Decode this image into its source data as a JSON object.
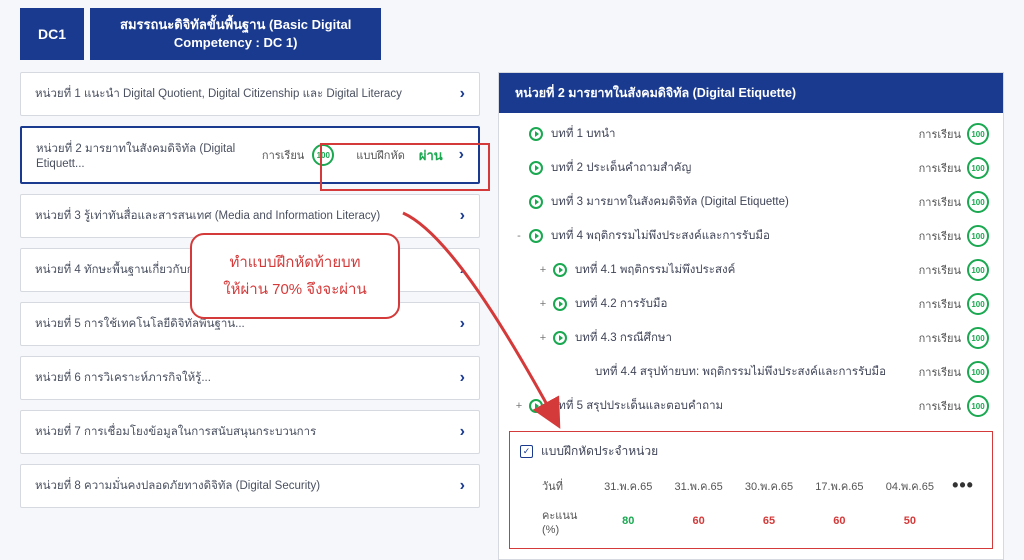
{
  "colors": {
    "brand": "#1a3a8f",
    "accent_red": "#d43a3a",
    "accent_green": "#1aa851",
    "bg": "#f5f7fa",
    "border": "#d6d9e0",
    "text": "#404558"
  },
  "header": {
    "badge": "DC1",
    "title_line1": "สมรรถนะดิจิทัลขั้นพื้นฐาน (Basic Digital",
    "title_line2": "Competency : DC 1)"
  },
  "units": [
    {
      "title": "หน่วยที่ 1 แนะนำ Digital Quotient, Digital Citizenship และ Digital Literacy"
    },
    {
      "title": "หน่วยที่ 2 มารยาทในสังคมดิจิทัล (Digital Etiquett...",
      "selected": true,
      "status_label": "การเรียน",
      "score": "100",
      "quiz_label": "แบบฝึกหัด",
      "pass_label": "ผ่าน"
    },
    {
      "title": "หน่วยที่ 3 รู้เท่าทันสื่อและสารสนเทศ (Media and Information Literacy)"
    },
    {
      "title": "หน่วยที่ 4 ทักษะพื้นฐานเกี่ยวกับการใช้งานคอมพิวเตอร์..."
    },
    {
      "title": "หน่วยที่ 5 การใช้เทคโนโลยีดิจิทัลพื้นฐาน..."
    },
    {
      "title": "หน่วยที่ 6 การวิเคราะห์ภารกิจให้รู้..."
    },
    {
      "title": "หน่วยที่ 7 การเชื่อมโยงข้อมูลในการสนับสนุนกระบวนการ"
    },
    {
      "title": "หน่วยที่ 8 ความมั่นคงปลอดภัยทางดิจิทัล (Digital Security)"
    }
  ],
  "callout": {
    "line1": "ทำแบบฝึกหัดท้ายบท",
    "line2": "ให้ผ่าน 70% จึงจะผ่าน"
  },
  "panel": {
    "title": "หน่วยที่ 2 มารยาทในสังคมดิจิทัล (Digital Etiquette)",
    "status_label": "การเรียน",
    "lessons": [
      {
        "tree": "",
        "indent": 0,
        "title": "บทที่ 1 บทนำ",
        "score": "100"
      },
      {
        "tree": "",
        "indent": 0,
        "title": "บทที่ 2 ประเด็นคำถามสำคัญ",
        "score": "100"
      },
      {
        "tree": "",
        "indent": 0,
        "title": "บทที่ 3 มารยาทในสังคมดิจิทัล (Digital Etiquette)",
        "score": "100"
      },
      {
        "tree": "-",
        "indent": 0,
        "title": "บทที่ 4 พฤติกรรมไม่พึงประสงค์และการรับมือ",
        "score": "100"
      },
      {
        "tree": "+",
        "indent": 1,
        "title": "บทที่ 4.1 พฤติกรรมไม่พึงประสงค์",
        "score": "100"
      },
      {
        "tree": "+",
        "indent": 1,
        "title": "บทที่ 4.2 การรับมือ",
        "score": "100"
      },
      {
        "tree": "+",
        "indent": 1,
        "title": "บทที่ 4.3 กรณีศึกษา",
        "score": "100"
      },
      {
        "tree": "",
        "indent": 2,
        "no_bullet": true,
        "title": "บทที่ 4.4 สรุปท้ายบท: พฤติกรรมไม่พึงประสงค์และการรับมือ",
        "score": "100"
      },
      {
        "tree": "+",
        "indent": 0,
        "title": "บทที่ 5 สรุปประเด็นและตอบคำถาม",
        "score": "100"
      }
    ],
    "quiz": {
      "heading": "แบบฝึกหัดประจำหน่วย",
      "row_date_label": "วันที่",
      "row_score_label": "คะแนน (%)",
      "more": "•••",
      "attempts": [
        {
          "date": "31.พ.ค.65",
          "score": "80",
          "pass": true
        },
        {
          "date": "31.พ.ค.65",
          "score": "60",
          "pass": false
        },
        {
          "date": "30.พ.ค.65",
          "score": "65",
          "pass": false
        },
        {
          "date": "17.พ.ค.65",
          "score": "60",
          "pass": false
        },
        {
          "date": "04.พ.ค.65",
          "score": "50",
          "pass": false
        }
      ]
    }
  }
}
